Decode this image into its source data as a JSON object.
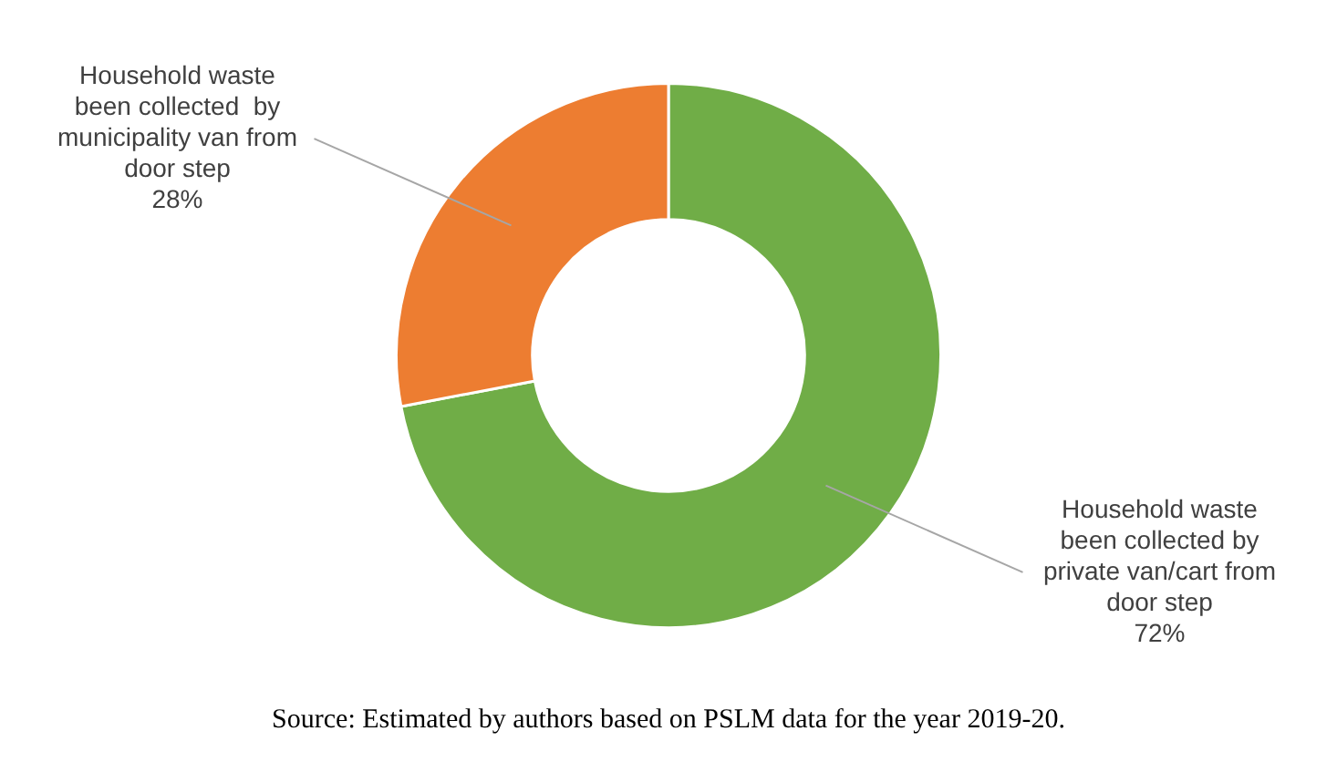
{
  "chart_data": {
    "type": "donut",
    "categories": [
      "Household waste been collected by private van/cart from door step",
      "Household waste been collected  by municipality van from door step"
    ],
    "values": [
      72,
      28
    ],
    "colors": [
      "#70ad47",
      "#ed7d31"
    ],
    "value_labels": [
      "72%",
      "28%"
    ],
    "legend": false,
    "annotations": [
      "Source: Estimated by authors based on PSLM data for the year 2019-20."
    ]
  }
}
